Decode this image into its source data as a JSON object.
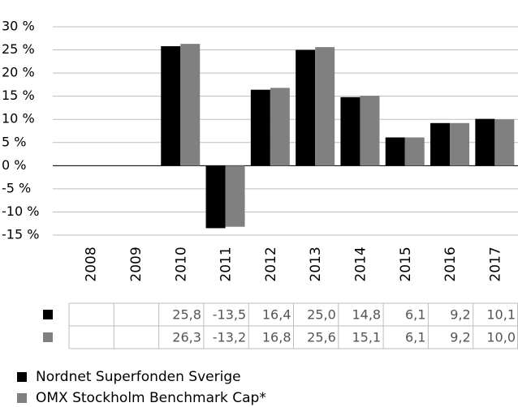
{
  "chart_data": {
    "type": "bar",
    "categories": [
      "2008",
      "2009",
      "2010",
      "2011",
      "2012",
      "2013",
      "2014",
      "2015",
      "2016",
      "2017"
    ],
    "series": [
      {
        "name": "Nordnet Superfonden Sverige",
        "color": "#000000",
        "values": [
          null,
          null,
          25.8,
          -13.5,
          16.4,
          25.0,
          14.8,
          6.1,
          9.2,
          10.1
        ],
        "value_labels": [
          null,
          null,
          "25,8",
          "-13,5",
          "16,4",
          "25,0",
          "14,8",
          "6,1",
          "9,2",
          "10,1"
        ]
      },
      {
        "name": "OMX Stockholm Benchmark Cap*",
        "color": "#808080",
        "values": [
          null,
          null,
          26.3,
          -13.2,
          16.8,
          25.6,
          15.1,
          6.1,
          9.2,
          10.0
        ],
        "value_labels": [
          null,
          null,
          "26,3",
          "-13,2",
          "16,8",
          "25,6",
          "15,1",
          "6,1",
          "9,2",
          "10,0"
        ]
      }
    ],
    "ylim": [
      -15,
      30
    ],
    "yticks": [
      {
        "value": 30,
        "label": "30 %"
      },
      {
        "value": 25,
        "label": "25 %"
      },
      {
        "value": 20,
        "label": "20 %"
      },
      {
        "value": 15,
        "label": "15 %"
      },
      {
        "value": 10,
        "label": "10 %"
      },
      {
        "value": 5,
        "label": "5 %"
      },
      {
        "value": 0,
        "label": "0 %"
      },
      {
        "value": -5,
        "label": "-5 %"
      },
      {
        "value": -10,
        "label": "-10 %"
      },
      {
        "value": -15,
        "label": "-15 %"
      }
    ],
    "grid": true
  }
}
